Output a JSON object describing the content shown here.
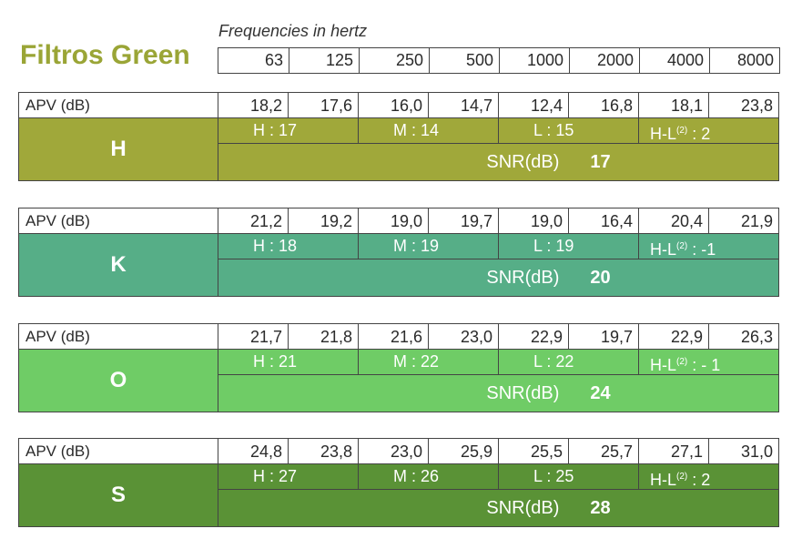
{
  "title": "Filtros Green",
  "freq_label": "Frequencies in hertz",
  "frequencies": [
    "63",
    "125",
    "250",
    "500",
    "1000",
    "2000",
    "4000",
    "8000"
  ],
  "blocks": [
    {
      "apv_label": "APV (dB)",
      "apv": [
        "18,2",
        "17,6",
        "16,0",
        "14,7",
        "12,4",
        "16,8",
        "18,1",
        "23,8"
      ],
      "letter": "H",
      "h": "H  :  17",
      "m": "M  :  14",
      "l": "L  :  15",
      "hl_prefix": "H-L",
      "hl_sup": "(2)",
      "hl_value": " :  2",
      "snr_label": "SNR(dB)",
      "snr": "17",
      "color": "#a0a83a"
    },
    {
      "apv_label": "APV (dB)",
      "apv": [
        "21,2",
        "19,2",
        "19,0",
        "19,7",
        "19,0",
        "16,4",
        "20,4",
        "21,9"
      ],
      "letter": "K",
      "h": "H  :  18",
      "m": "M  :  19",
      "l": "L  :  19",
      "hl_prefix": "H-L",
      "hl_sup": "(2)",
      "hl_value": " :  -1",
      "snr_label": "SNR(dB)",
      "snr": "20",
      "color": "#56ae87"
    },
    {
      "apv_label": "APV (dB)",
      "apv": [
        "21,7",
        "21,8",
        "21,6",
        "23,0",
        "22,9",
        "19,7",
        "22,9",
        "26,3"
      ],
      "letter": "O",
      "h": "H  :  21",
      "m": "M  :          22",
      "l": "L  :  22",
      "hl_prefix": "H-L",
      "hl_sup": "(2)",
      "hl_value": " :   - 1",
      "snr_label": "SNR(dB)",
      "snr": "24",
      "color": "#6fcc66"
    },
    {
      "apv_label": "APV (dB)",
      "apv": [
        "24,8",
        "23,8",
        "23,0",
        "25,9",
        "25,5",
        "25,7",
        "27,1",
        "31,0"
      ],
      "letter": "S",
      "h": "H  :  27",
      "m": "M  :  26",
      "l": "L  :  25",
      "hl_prefix": "H-L",
      "hl_sup": "(2)",
      "hl_value": " :  2",
      "snr_label": "SNR(dB)",
      "snr": "28",
      "color": "#5a9236"
    }
  ]
}
